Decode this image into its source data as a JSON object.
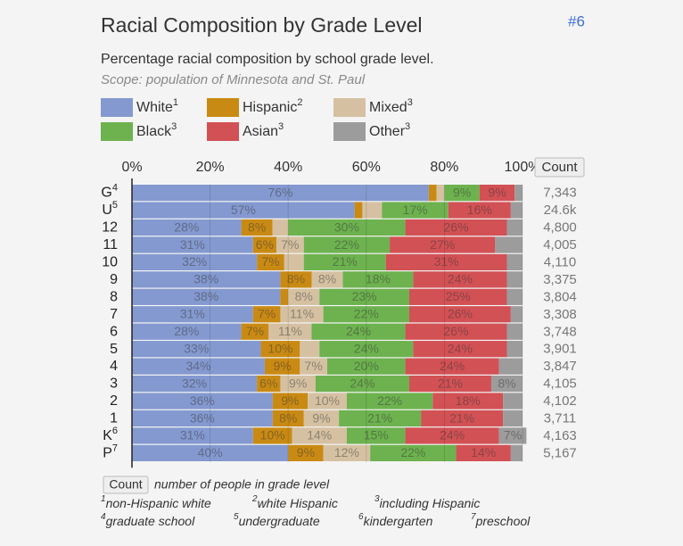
{
  "chart_data": {
    "type": "bar",
    "stacked": true,
    "orientation": "horizontal",
    "title": "Racial Composition by Grade Level",
    "badge": "#6",
    "subtitle": "Percentage racial composition by school grade level.",
    "scope": "Scope: population of Minnesota and St. Paul",
    "count_header": "Count",
    "categories": [
      "G",
      "U",
      "12",
      "11",
      "10",
      "9",
      "8",
      "7",
      "6",
      "5",
      "4",
      "3",
      "2",
      "1",
      "K",
      "P"
    ],
    "category_notes": [
      "4",
      "5",
      null,
      null,
      null,
      null,
      null,
      null,
      null,
      null,
      null,
      null,
      null,
      null,
      "6",
      "7"
    ],
    "counts": [
      "7,343",
      "24.6k",
      "4,800",
      "4,005",
      "4,110",
      "3,375",
      "3,804",
      "3,308",
      "3,748",
      "3,901",
      "3,847",
      "4,105",
      "4,102",
      "3,711",
      "4,163",
      "5,167"
    ],
    "series": [
      {
        "name": "White",
        "note": "1",
        "color": "#8499cf",
        "values": [
          76,
          57,
          28,
          31,
          32,
          38,
          38,
          31,
          28,
          33,
          34,
          32,
          36,
          36,
          31,
          40
        ],
        "value_labels": [
          "76%",
          "57%",
          "28%",
          "31%",
          "32%",
          "38%",
          "38%",
          "31%",
          "28%",
          "33%",
          "34%",
          "32%",
          "36%",
          "36%",
          "31%",
          "40%"
        ]
      },
      {
        "name": "Hispanic",
        "note": "2",
        "color": "#c98a14",
        "values": [
          2,
          2,
          8,
          6,
          7,
          8,
          2,
          7,
          7,
          10,
          9,
          6,
          9,
          8,
          10,
          9
        ],
        "value_labels": [
          null,
          null,
          "8%",
          "6%",
          "7%",
          "8%",
          null,
          "7%",
          "7%",
          "10%",
          "9%",
          "6%",
          "9%",
          "8%",
          "10%",
          "9%"
        ]
      },
      {
        "name": "Mixed",
        "note": "3",
        "color": "#d5c1a2",
        "values": [
          2,
          5,
          4,
          7,
          5,
          8,
          8,
          11,
          11,
          5,
          7,
          9,
          10,
          9,
          14,
          12
        ],
        "value_labels": [
          null,
          null,
          null,
          "7%",
          null,
          "8%",
          "8%",
          "11%",
          "11%",
          null,
          "7%",
          "9%",
          "10%",
          "9%",
          "14%",
          "12%"
        ]
      },
      {
        "name": "Black",
        "note": "3",
        "color": "#6db24f",
        "values": [
          9,
          17,
          30,
          22,
          21,
          18,
          23,
          22,
          24,
          24,
          20,
          24,
          22,
          21,
          15,
          22
        ],
        "value_labels": [
          "9%",
          "17%",
          "30%",
          "22%",
          "21%",
          "18%",
          "23%",
          "22%",
          "24%",
          "24%",
          "20%",
          "24%",
          "22%",
          "21%",
          "15%",
          "22%"
        ]
      },
      {
        "name": "Asian",
        "note": "3",
        "color": "#d25155",
        "values": [
          9,
          16,
          26,
          27,
          31,
          24,
          25,
          26,
          26,
          24,
          24,
          21,
          18,
          21,
          24,
          14
        ],
        "value_labels": [
          "9%",
          "16%",
          "26%",
          "27%",
          "31%",
          "24%",
          "25%",
          "26%",
          "26%",
          "24%",
          "24%",
          "21%",
          "18%",
          "21%",
          "24%",
          "14%"
        ]
      },
      {
        "name": "Other",
        "note": "3",
        "color": "#9c9c9c",
        "values": [
          2,
          3,
          4,
          7,
          4,
          4,
          4,
          3,
          4,
          4,
          6,
          8,
          5,
          5,
          7,
          3
        ],
        "value_labels": [
          null,
          null,
          null,
          null,
          null,
          null,
          null,
          null,
          null,
          null,
          null,
          "8%",
          null,
          null,
          "7%",
          null
        ]
      }
    ],
    "xlim": [
      0,
      100
    ],
    "xticks": [
      {
        "value": 0,
        "label": "0%"
      },
      {
        "value": 20,
        "label": "20%"
      },
      {
        "value": 40,
        "label": "40%"
      },
      {
        "value": 60,
        "label": "60%"
      },
      {
        "value": 80,
        "label": "80%"
      },
      {
        "value": 100,
        "label": "100%"
      }
    ],
    "grid": true
  },
  "footnotes": {
    "count_key": "Count",
    "count_desc": "number of people in grade level",
    "notes": [
      {
        "mark": "1",
        "text": "non-Hispanic white"
      },
      {
        "mark": "2",
        "text": "white Hispanic"
      },
      {
        "mark": "3",
        "text": "including Hispanic"
      },
      {
        "mark": "4",
        "text": "graduate school"
      },
      {
        "mark": "5",
        "text": "undergraduate"
      },
      {
        "mark": "6",
        "text": "kindergarten"
      },
      {
        "mark": "7",
        "text": "preschool"
      }
    ]
  }
}
